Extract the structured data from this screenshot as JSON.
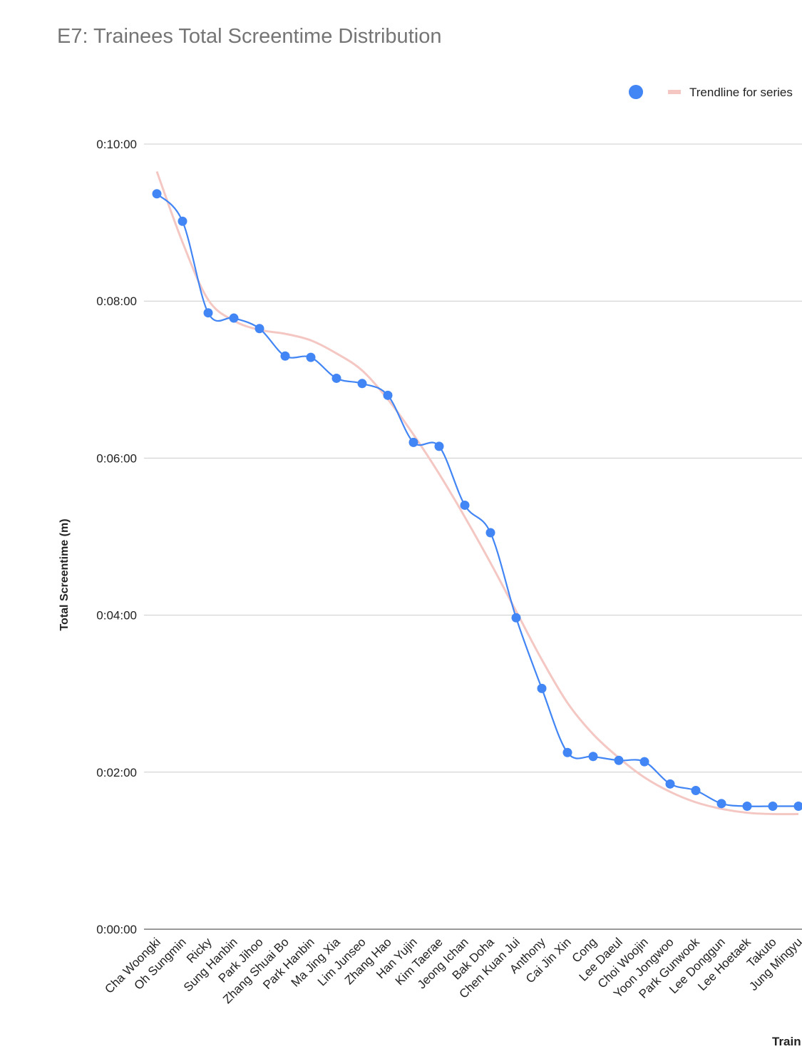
{
  "chart_data": {
    "type": "line",
    "title": "E7: Trainees Total Screentime Distribution",
    "y_label": "Total Screentime (m)",
    "x_label": "Train",
    "categories": [
      "Cha Woongki",
      "Oh Sungmin",
      "Ricky",
      "Sung Hanbin",
      "Park Jihoo",
      "Zhang Shuai Bo",
      "Park Hanbin",
      "Ma Jing Xia",
      "Lim Junseo",
      "Zhang Hao",
      "Han Yujin",
      "Kim Taerae",
      "Jeong Ichan",
      "Bak Doha",
      "Chen Kuan Jui",
      "Anthony",
      "Cai Jin Xin",
      "Cong",
      "Lee Daeul",
      "Choi Woojin",
      "Yoon Jongwoo",
      "Park Gunwook",
      "Lee Donggun",
      "Lee Hoetaek",
      "Takuto",
      "Jung Mingyu"
    ],
    "series": [
      {
        "color": "#4285f4",
        "values": [
          562,
          541,
          471,
          467,
          459,
          438,
          437,
          421,
          417,
          408,
          372,
          369,
          324,
          303,
          238,
          184,
          135,
          132,
          129,
          128,
          111,
          106,
          96,
          94,
          94,
          94
        ]
      },
      {
        "name": "Trendline for series",
        "color": "#f4c7c3",
        "trendline": true,
        "values": [
          579,
          525,
          481,
          465,
          458,
          455,
          450,
          440,
          427,
          405,
          378,
          348,
          315,
          280,
          243,
          206,
          173,
          149,
          131,
          116,
          105,
          97,
          92,
          89,
          88,
          88
        ]
      }
    ],
    "ylim": [
      0,
      600
    ],
    "yticks": [
      {
        "value": 0,
        "label": "0:00:00"
      },
      {
        "value": 120,
        "label": "0:02:00"
      },
      {
        "value": 240,
        "label": "0:04:00"
      },
      {
        "value": 360,
        "label": "0:06:00"
      },
      {
        "value": 480,
        "label": "0:08:00"
      },
      {
        "value": 600,
        "label": "0:10:00"
      }
    ],
    "grid": true,
    "legend": "top-right"
  }
}
